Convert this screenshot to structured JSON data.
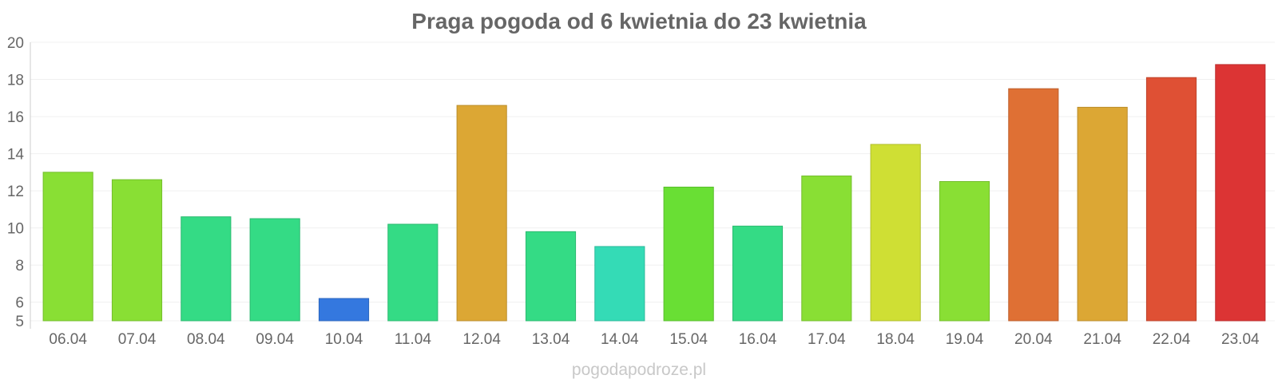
{
  "watermark": "pogodapodroze.pl",
  "chart_data": {
    "type": "bar",
    "title": "Praga pogoda od 6 kwietnia do 23 kwietnia",
    "xlabel": "",
    "ylabel": "",
    "ylim": [
      5,
      20
    ],
    "yticks": [
      5,
      6,
      8,
      10,
      12,
      14,
      16,
      18,
      20
    ],
    "grid": true,
    "categories": [
      "06.04",
      "07.04",
      "08.04",
      "09.04",
      "10.04",
      "11.04",
      "12.04",
      "13.04",
      "14.04",
      "15.04",
      "16.04",
      "17.04",
      "18.04",
      "19.04",
      "20.04",
      "21.04",
      "22.04",
      "23.04"
    ],
    "values": [
      13.0,
      12.6,
      10.6,
      10.5,
      6.2,
      10.2,
      16.6,
      9.8,
      9.0,
      12.2,
      10.1,
      12.8,
      14.5,
      12.5,
      17.5,
      16.5,
      18.1,
      18.8
    ],
    "colors": [
      "#89df34",
      "#89df34",
      "#34db85",
      "#34db85",
      "#3478df",
      "#34db85",
      "#dca734",
      "#34db85",
      "#34dbb6",
      "#69df34",
      "#34db85",
      "#89df34",
      "#cfdf34",
      "#89df34",
      "#df7034",
      "#dca734",
      "#df5034",
      "#dc3434"
    ]
  }
}
